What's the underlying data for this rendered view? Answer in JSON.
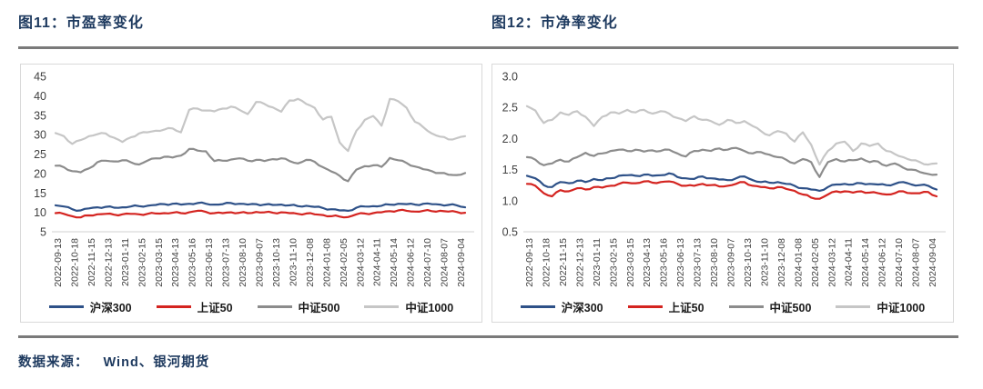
{
  "page": {
    "source_label": "数据来源：",
    "source_value": "Wind、银河期货"
  },
  "colors": {
    "title_navy": "#1e3a5f",
    "separator_gray": "#7a7a7a",
    "panel_border": "#d9d9d9",
    "axis_line": "#d9d9d9",
    "tick_text": "#404040",
    "legend_text": "#1a1a1a"
  },
  "chart_data": [
    {
      "type": "line",
      "title": "图11：市盈率变化",
      "ylabel": "",
      "xlabel": "",
      "ylim": [
        5,
        45
      ],
      "y_ticks": [
        "45",
        "40",
        "35",
        "30",
        "25",
        "20",
        "15",
        "10",
        "5"
      ],
      "grid": false,
      "legend_position": "bottom",
      "x_labels": [
        "2022-09-13",
        "2022-10-18",
        "2022-11-15",
        "2022-12-13",
        "2023-01-11",
        "2023-02-15",
        "2023-03-15",
        "2023-04-13",
        "2023-05-16",
        "2023-06-13",
        "2023-07-13",
        "2023-08-10",
        "2023-09-07",
        "2023-10-13",
        "2023-11-10",
        "2023-12-08",
        "2024-01-08",
        "2024-02-05",
        "2024-03-12",
        "2024-04-11",
        "2024-05-14",
        "2024-06-12",
        "2024-07-10",
        "2024-08-07",
        "2024-09-04"
      ],
      "series": [
        {
          "key": "hs300",
          "name": "沪深300",
          "color": "#2e5188",
          "values": [
            11.8,
            11.5,
            10.8,
            10.5,
            11.0,
            11.3,
            11.4,
            11.2,
            11.3,
            11.5,
            11.6,
            11.7,
            11.9,
            12.1,
            12.2,
            12.0,
            12.2,
            12.4,
            12.2,
            12.0,
            12.1,
            12.4,
            12.2,
            12.0,
            12.1,
            12.0,
            11.9,
            12.0,
            11.8,
            11.6,
            11.7,
            11.4,
            11.1,
            10.8,
            10.5,
            10.4,
            11.2,
            11.5,
            11.6,
            11.7,
            12.0,
            12.2,
            12.1,
            12.0,
            12.2,
            12.1,
            12.0,
            11.9,
            11.8,
            11.3
          ]
        },
        {
          "key": "sz50",
          "name": "上证50",
          "color": "#d42420",
          "values": [
            9.8,
            9.6,
            9.0,
            8.7,
            9.2,
            9.5,
            9.6,
            9.4,
            9.5,
            9.6,
            9.5,
            9.6,
            9.7,
            9.8,
            9.9,
            9.8,
            10.0,
            10.4,
            10.1,
            9.8,
            9.8,
            10.0,
            9.9,
            9.8,
            10.1,
            10.0,
            9.9,
            10.0,
            9.8,
            9.6,
            9.7,
            9.5,
            9.3,
            9.0,
            8.9,
            8.8,
            9.5,
            9.7,
            9.8,
            10.0,
            10.3,
            10.5,
            10.4,
            10.2,
            10.4,
            10.3,
            10.4,
            10.2,
            10.1,
            9.9
          ]
        },
        {
          "key": "zz500",
          "name": "中证500",
          "color": "#8c8c8c",
          "values": [
            22.0,
            21.6,
            20.6,
            20.3,
            21.3,
            22.9,
            23.3,
            23.1,
            23.4,
            22.9,
            22.3,
            23.3,
            23.9,
            24.3,
            24.1,
            24.6,
            26.3,
            25.9,
            25.7,
            23.2,
            23.3,
            23.6,
            23.9,
            23.3,
            23.5,
            23.2,
            23.7,
            23.9,
            23.2,
            22.6,
            23.5,
            23.0,
            21.6,
            20.5,
            19.4,
            18.0,
            21.0,
            21.9,
            22.1,
            21.7,
            24.0,
            23.4,
            22.7,
            21.8,
            21.1,
            20.6,
            20.1,
            19.7,
            19.6,
            20.1
          ]
        },
        {
          "key": "zz1000",
          "name": "中证1000",
          "color": "#c6c6c6",
          "values": [
            30.4,
            29.6,
            27.6,
            28.6,
            29.6,
            30.1,
            30.3,
            29.2,
            28.1,
            29.3,
            30.3,
            30.6,
            31.0,
            31.3,
            31.6,
            30.6,
            36.4,
            36.7,
            36.2,
            36.0,
            36.7,
            37.2,
            36.4,
            35.3,
            38.4,
            37.9,
            37.0,
            35.9,
            38.8,
            39.2,
            37.9,
            36.9,
            33.9,
            34.6,
            28.0,
            25.8,
            31.0,
            33.8,
            34.8,
            32.3,
            39.2,
            38.6,
            36.9,
            33.3,
            31.9,
            30.3,
            29.5,
            28.8,
            29.1,
            29.6
          ]
        }
      ]
    },
    {
      "type": "line",
      "title": "图12：市净率变化",
      "ylabel": "",
      "xlabel": "",
      "ylim": [
        0.5,
        3.0
      ],
      "y_ticks": [
        "3.0",
        "2.5",
        "2.0",
        "1.5",
        "1.0",
        "0.5"
      ],
      "grid": false,
      "legend_position": "bottom",
      "x_labels": [
        "2022-09-13",
        "2022-10-18",
        "2022-11-15",
        "2022-12-13",
        "2023-01-11",
        "2023-02-15",
        "2023-03-15",
        "2023-04-13",
        "2023-05-16",
        "2023-06-13",
        "2023-07-13",
        "2023-08-10",
        "2023-09-07",
        "2023-10-13",
        "2023-11-10",
        "2023-12-08",
        "2024-01-08",
        "2024-02-05",
        "2024-03-12",
        "2024-04-11",
        "2024-05-14",
        "2024-06-12",
        "2024-07-10",
        "2024-08-07",
        "2024-09-04"
      ],
      "series": [
        {
          "key": "hs300",
          "name": "沪深300",
          "color": "#2e5188",
          "values": [
            1.4,
            1.36,
            1.25,
            1.22,
            1.3,
            1.28,
            1.32,
            1.3,
            1.35,
            1.33,
            1.36,
            1.4,
            1.41,
            1.4,
            1.42,
            1.4,
            1.41,
            1.44,
            1.38,
            1.36,
            1.35,
            1.39,
            1.36,
            1.34,
            1.33,
            1.36,
            1.39,
            1.33,
            1.3,
            1.29,
            1.3,
            1.27,
            1.24,
            1.2,
            1.18,
            1.16,
            1.22,
            1.26,
            1.27,
            1.26,
            1.28,
            1.27,
            1.26,
            1.25,
            1.27,
            1.3,
            1.26,
            1.25,
            1.24,
            1.18
          ]
        },
        {
          "key": "sz50",
          "name": "上证50",
          "color": "#d42420",
          "values": [
            1.27,
            1.24,
            1.12,
            1.07,
            1.17,
            1.15,
            1.2,
            1.18,
            1.22,
            1.21,
            1.24,
            1.27,
            1.29,
            1.28,
            1.31,
            1.29,
            1.3,
            1.31,
            1.27,
            1.24,
            1.24,
            1.27,
            1.25,
            1.23,
            1.24,
            1.27,
            1.3,
            1.24,
            1.22,
            1.2,
            1.22,
            1.19,
            1.16,
            1.1,
            1.05,
            1.03,
            1.1,
            1.15,
            1.15,
            1.13,
            1.15,
            1.13,
            1.12,
            1.1,
            1.12,
            1.15,
            1.12,
            1.12,
            1.14,
            1.07
          ]
        },
        {
          "key": "zz500",
          "name": "中证500",
          "color": "#8c8c8c",
          "values": [
            1.7,
            1.66,
            1.57,
            1.6,
            1.66,
            1.63,
            1.7,
            1.77,
            1.72,
            1.76,
            1.8,
            1.82,
            1.8,
            1.82,
            1.79,
            1.81,
            1.8,
            1.82,
            1.76,
            1.71,
            1.8,
            1.82,
            1.8,
            1.84,
            1.82,
            1.85,
            1.8,
            1.76,
            1.78,
            1.74,
            1.7,
            1.66,
            1.6,
            1.67,
            1.62,
            1.38,
            1.62,
            1.67,
            1.63,
            1.65,
            1.68,
            1.62,
            1.63,
            1.56,
            1.6,
            1.53,
            1.5,
            1.46,
            1.43,
            1.42
          ]
        },
        {
          "key": "zz1000",
          "name": "中证1000",
          "color": "#c6c6c6",
          "values": [
            2.52,
            2.45,
            2.25,
            2.3,
            2.42,
            2.38,
            2.44,
            2.35,
            2.2,
            2.35,
            2.42,
            2.4,
            2.46,
            2.42,
            2.46,
            2.4,
            2.44,
            2.4,
            2.33,
            2.28,
            2.36,
            2.3,
            2.28,
            2.22,
            2.3,
            2.25,
            2.28,
            2.2,
            2.12,
            2.05,
            2.12,
            2.08,
            1.95,
            2.1,
            1.9,
            1.58,
            1.8,
            1.92,
            1.95,
            1.8,
            1.92,
            1.88,
            1.92,
            1.8,
            1.75,
            1.7,
            1.65,
            1.62,
            1.58,
            1.6
          ]
        }
      ]
    }
  ]
}
